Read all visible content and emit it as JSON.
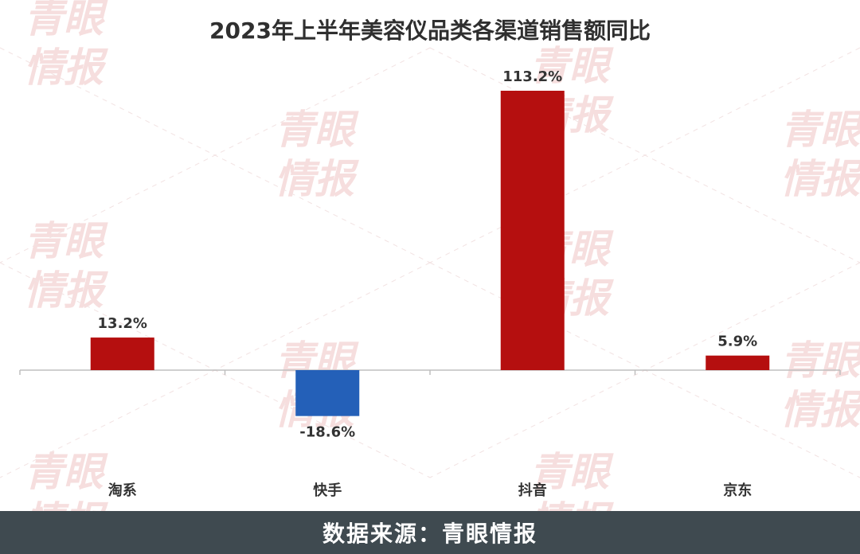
{
  "chart_data": {
    "type": "bar",
    "title": "2023年上半年美容仪品类各渠道销售额同比",
    "categories": [
      "淘系",
      "快手",
      "抖音",
      "京东"
    ],
    "values": [
      13.2,
      -18.6,
      113.2,
      5.9
    ],
    "value_labels": [
      "13.2%",
      "-18.6%",
      "113.2%",
      "5.9%"
    ],
    "unit": "%",
    "xlabel": "",
    "ylabel": "",
    "grid": false,
    "legend": "none",
    "colors": {
      "positive": "#b50f0f",
      "negative": "#2460b8"
    }
  },
  "watermark": {
    "line1": "青眼",
    "line2": "情报"
  },
  "footer": {
    "source_text": "数据来源：青眼情报"
  }
}
